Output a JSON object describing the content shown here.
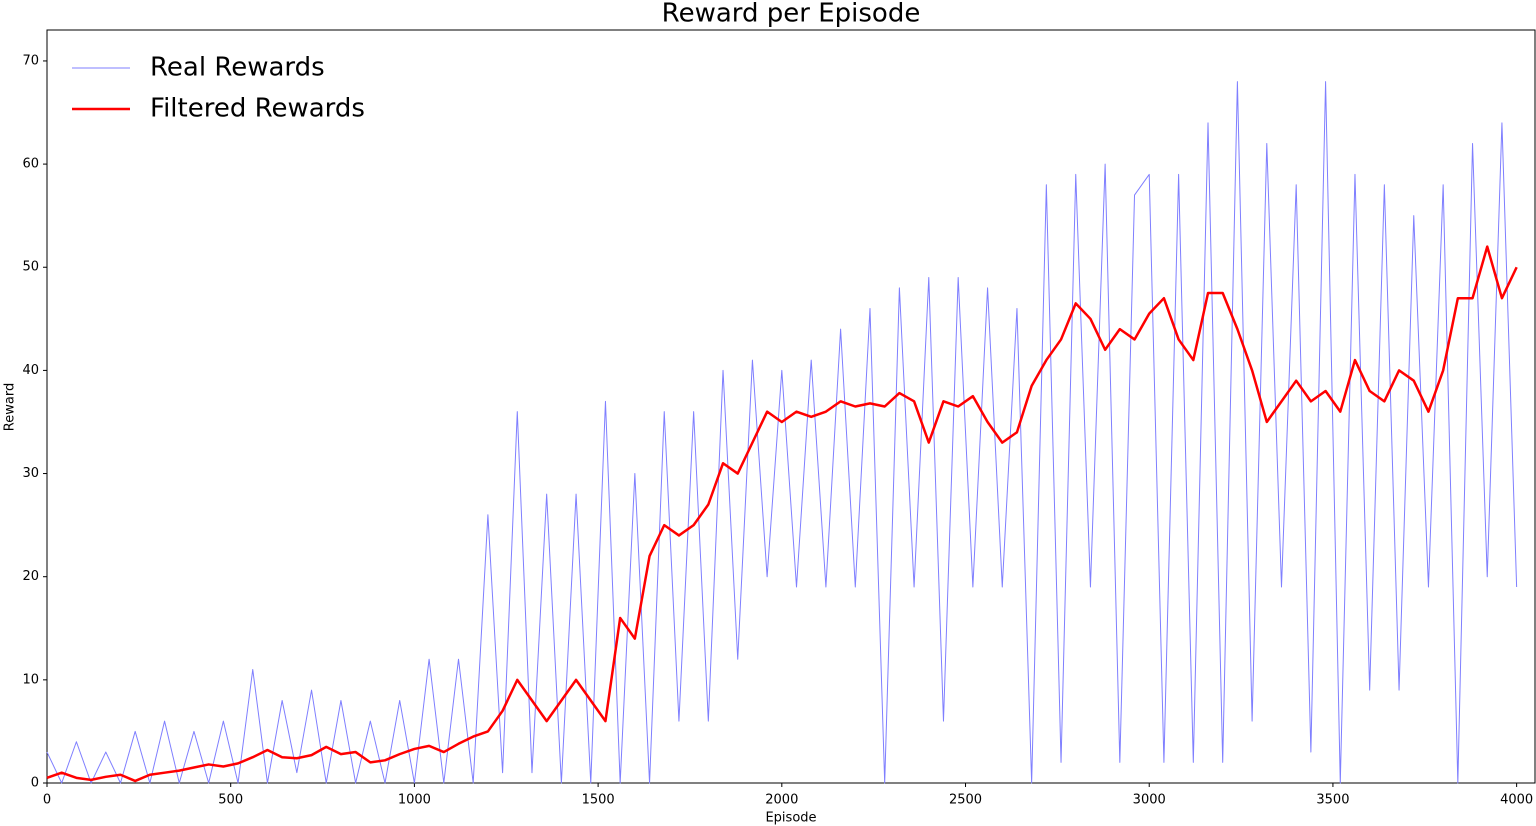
{
  "chart_data": {
    "type": "line",
    "title": "Reward per Episode",
    "xlabel": "Episode",
    "ylabel": "Reward",
    "xlim": [
      0,
      4050
    ],
    "ylim": [
      0,
      73
    ],
    "xticks": [
      0,
      500,
      1000,
      1500,
      2000,
      2500,
      3000,
      3500,
      4000
    ],
    "yticks": [
      0,
      10,
      20,
      30,
      40,
      50,
      60,
      70
    ],
    "legend": "upper left",
    "x": [
      0,
      40,
      80,
      120,
      160,
      200,
      240,
      280,
      320,
      360,
      400,
      440,
      480,
      520,
      560,
      600,
      640,
      680,
      720,
      760,
      800,
      840,
      880,
      920,
      960,
      1000,
      1040,
      1080,
      1120,
      1160,
      1200,
      1240,
      1280,
      1320,
      1360,
      1400,
      1440,
      1480,
      1520,
      1560,
      1600,
      1640,
      1680,
      1720,
      1760,
      1800,
      1840,
      1880,
      1920,
      1960,
      2000,
      2040,
      2080,
      2120,
      2160,
      2200,
      2240,
      2280,
      2320,
      2360,
      2400,
      2440,
      2480,
      2520,
      2560,
      2600,
      2640,
      2680,
      2720,
      2760,
      2800,
      2840,
      2880,
      2920,
      2960,
      3000,
      3040,
      3080,
      3120,
      3160,
      3200,
      3240,
      3280,
      3320,
      3360,
      3400,
      3440,
      3480,
      3520,
      3560,
      3600,
      3640,
      3680,
      3720,
      3760,
      3800,
      3840,
      3880,
      3920,
      3960,
      4000
    ],
    "series": [
      {
        "name": "Real Rewards",
        "color": "#7f7fff",
        "width": 1,
        "values": [
          3,
          0,
          4,
          0,
          3,
          0,
          5,
          0,
          6,
          0,
          5,
          0,
          6,
          0,
          11,
          0,
          8,
          1,
          9,
          0,
          8,
          0,
          6,
          0,
          8,
          0,
          12,
          0,
          12,
          0,
          26,
          1,
          36,
          1,
          28,
          0,
          28,
          0,
          37,
          0,
          30,
          0,
          36,
          6,
          36,
          6,
          40,
          12,
          41,
          20,
          40,
          19,
          41,
          19,
          44,
          19,
          46,
          0,
          48,
          19,
          49,
          6,
          49,
          19,
          48,
          19,
          46,
          0,
          58,
          2,
          59,
          19,
          60,
          2,
          57,
          59,
          2,
          59,
          2,
          64,
          2,
          68,
          6,
          62,
          19,
          58,
          3,
          68,
          0,
          59,
          9,
          58,
          9,
          55,
          19,
          58,
          0,
          62,
          20,
          64,
          19
        ]
      },
      {
        "name": "Filtered Rewards",
        "color": "#ff0000",
        "width": 2.5,
        "values": [
          0.5,
          1,
          0.5,
          0.3,
          0.6,
          0.8,
          0.2,
          0.8,
          1,
          1.2,
          1.5,
          1.8,
          1.6,
          1.9,
          2.5,
          3.2,
          2.5,
          2.4,
          2.7,
          3.5,
          2.8,
          3,
          2,
          2.2,
          2.8,
          3.3,
          3.6,
          3,
          3.8,
          4.5,
          5,
          7,
          10,
          8,
          6,
          8,
          10,
          8,
          6,
          16,
          14,
          22,
          25,
          24,
          25,
          27,
          31,
          30,
          33,
          36,
          35,
          36,
          35.5,
          36,
          37,
          36.5,
          36.8,
          36.5,
          37.8,
          37,
          33,
          37,
          36.5,
          37.5,
          35,
          33,
          34,
          38.5,
          41,
          43,
          46.5,
          45,
          42,
          44,
          43,
          45.5,
          47,
          43,
          41,
          47.5,
          47.5,
          44,
          40,
          35,
          37,
          39,
          37,
          38,
          36,
          41,
          38,
          37,
          40,
          39,
          36,
          40,
          47,
          47,
          52,
          47,
          50
        ]
      }
    ]
  }
}
